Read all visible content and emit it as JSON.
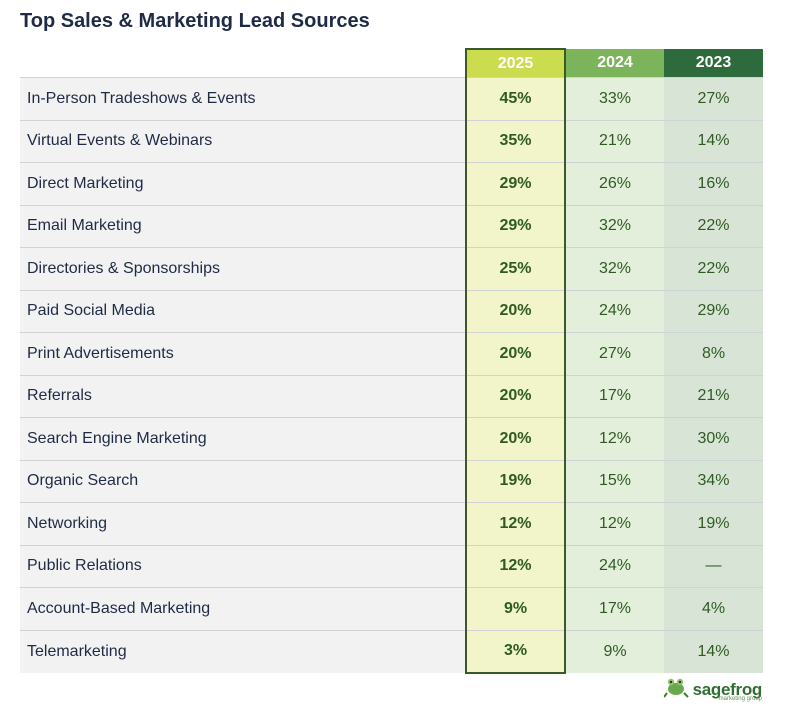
{
  "chart_data": {
    "type": "table",
    "title": "Top Sales & Marketing Lead Sources",
    "columns": [
      "2025",
      "2024",
      "2023"
    ],
    "rows": [
      {
        "label": "In-Person Tradeshows & Events",
        "values": [
          "45%",
          "33%",
          "27%"
        ]
      },
      {
        "label": "Virtual Events & Webinars",
        "values": [
          "35%",
          "21%",
          "14%"
        ]
      },
      {
        "label": "Direct Marketing",
        "values": [
          "29%",
          "26%",
          "16%"
        ]
      },
      {
        "label": "Email Marketing",
        "values": [
          "29%",
          "32%",
          "22%"
        ]
      },
      {
        "label": "Directories & Sponsorships",
        "values": [
          "25%",
          "32%",
          "22%"
        ]
      },
      {
        "label": "Paid Social Media",
        "values": [
          "20%",
          "24%",
          "29%"
        ]
      },
      {
        "label": "Print Advertisements",
        "values": [
          "20%",
          "27%",
          "8%"
        ]
      },
      {
        "label": "Referrals",
        "values": [
          "20%",
          "17%",
          "21%"
        ]
      },
      {
        "label": "Search Engine Marketing",
        "values": [
          "20%",
          "12%",
          "30%"
        ]
      },
      {
        "label": "Organic Search",
        "values": [
          "19%",
          "15%",
          "34%"
        ]
      },
      {
        "label": "Networking",
        "values": [
          "12%",
          "12%",
          "19%"
        ]
      },
      {
        "label": "Public Relations",
        "values": [
          "12%",
          "24%",
          "—"
        ]
      },
      {
        "label": "Account-Based Marketing",
        "values": [
          "9%",
          "17%",
          "4%"
        ]
      },
      {
        "label": "Telemarketing",
        "values": [
          "3%",
          "9%",
          "14%"
        ]
      }
    ],
    "column_colors": {
      "2025": "#cbdc4e",
      "2024": "#7cb45c",
      "2023": "#2e6b3c"
    }
  },
  "brand": {
    "name": "sagefrog",
    "tagline": "marketing group",
    "logo_icon": "frog-icon"
  }
}
